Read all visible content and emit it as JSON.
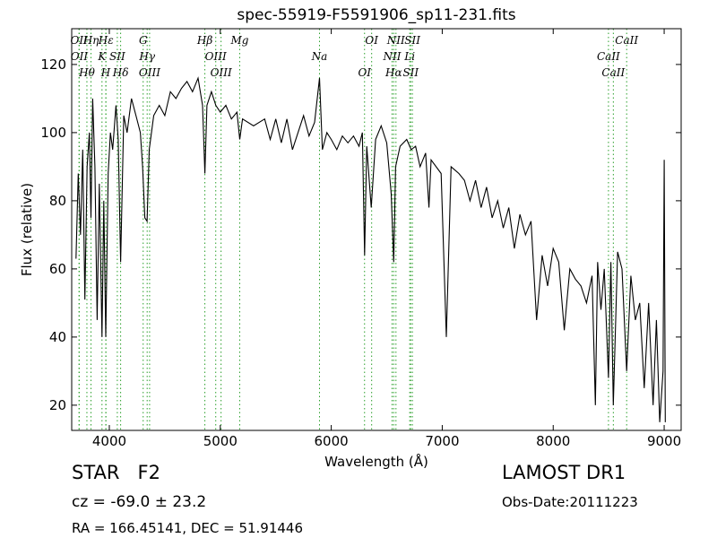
{
  "chart_data": {
    "type": "line",
    "title": "spec-55919-F5591906_sp11-231.fits",
    "x_label": "Wavelength (Å)",
    "y_label": "Flux (relative)",
    "xlim": [
      3661,
      9153
    ],
    "ylim": [
      12.6,
      130.5
    ],
    "xticks": [
      4000,
      5000,
      6000,
      7000,
      8000,
      9000
    ],
    "yticks": [
      20,
      40,
      60,
      80,
      100,
      120
    ],
    "x": [
      3700,
      3720,
      3740,
      3760,
      3780,
      3800,
      3820,
      3835,
      3850,
      3870,
      3890,
      3910,
      3934,
      3950,
      3968,
      3990,
      4010,
      4030,
      4060,
      4080,
      4102,
      4130,
      4160,
      4200,
      4240,
      4280,
      4300,
      4320,
      4340,
      4360,
      4400,
      4450,
      4500,
      4550,
      4600,
      4650,
      4700,
      4750,
      4800,
      4840,
      4861,
      4880,
      4920,
      4960,
      5000,
      5050,
      5100,
      5150,
      5175,
      5200,
      5300,
      5400,
      5450,
      5500,
      5550,
      5600,
      5650,
      5700,
      5750,
      5800,
      5850,
      5894,
      5920,
      5960,
      6000,
      6050,
      6100,
      6150,
      6200,
      6250,
      6280,
      6300,
      6320,
      6360,
      6400,
      6450,
      6500,
      6540,
      6563,
      6580,
      6620,
      6680,
      6720,
      6760,
      6800,
      6850,
      6880,
      6900,
      6990,
      7037,
      7080,
      7150,
      7200,
      7250,
      7300,
      7350,
      7400,
      7450,
      7500,
      7550,
      7600,
      7650,
      7700,
      7750,
      7800,
      7850,
      7900,
      7950,
      8000,
      8050,
      8100,
      8150,
      8200,
      8250,
      8300,
      8350,
      8380,
      8400,
      8430,
      8460,
      8498,
      8520,
      8542,
      8580,
      8620,
      8662,
      8700,
      8740,
      8780,
      8820,
      8860,
      8900,
      8930,
      8960,
      8990,
      9000,
      9010
    ],
    "series": [
      {
        "name": "flux",
        "color": "#000000",
        "values": [
          63,
          88,
          70,
          95,
          51,
          90,
          100,
          75,
          110,
          90,
          45,
          85,
          40,
          80,
          40,
          88,
          100,
          95,
          108,
          98,
          62,
          105,
          100,
          110,
          105,
          100,
          90,
          75,
          74,
          95,
          105,
          108,
          105,
          112,
          110,
          113,
          115,
          112,
          116,
          108,
          88,
          108,
          112,
          108,
          106,
          108,
          104,
          106,
          98,
          104,
          102,
          104,
          98,
          104,
          97,
          104,
          95,
          100,
          105,
          99,
          103,
          116,
          95,
          100,
          98,
          95,
          99,
          97,
          99,
          96,
          100,
          64,
          96,
          78,
          98,
          102,
          97,
          82,
          62,
          90,
          96,
          98,
          95,
          96,
          90,
          94,
          78,
          92,
          88,
          40,
          90,
          88,
          86,
          80,
          86,
          78,
          84,
          75,
          80,
          72,
          78,
          66,
          76,
          70,
          74,
          45,
          64,
          55,
          66,
          62,
          42,
          60,
          57,
          55,
          50,
          58,
          20,
          62,
          48,
          60,
          28,
          62,
          20,
          65,
          60,
          30,
          58,
          45,
          50,
          25,
          50,
          20,
          45,
          15,
          30,
          92,
          15
        ]
      }
    ],
    "line_color": "#2ca02c",
    "lines": [
      3727,
      3729,
      3798,
      3835,
      3934,
      3968,
      3970,
      4072,
      4102,
      4305,
      4341,
      4363,
      4861,
      4959,
      5007,
      5175,
      5894,
      6300,
      6364,
      6548,
      6563,
      6583,
      6707,
      6716,
      6731,
      8498,
      8542,
      8662
    ],
    "line_labels": [
      "OII",
      "OII",
      "Hθ",
      "Hη",
      "K",
      "H",
      "Hε",
      "SII",
      "Hδ",
      "G",
      "Hγ",
      "OIII",
      "Hβ",
      "OIII",
      "OIII",
      "Mg",
      "Na",
      "OI",
      "OI",
      "NII",
      "Hα",
      "NII",
      "Li",
      "SII",
      "SII",
      "CaII",
      "CaII",
      "CaII"
    ],
    "class_label": "STAR   F2",
    "redshift_label": "cz = -69.0 ± 23.2",
    "coords_label": "RA = 166.45141, DEC = 51.91446",
    "survey_label": "LAMOST DR1",
    "date_label": "Obs-Date:20111223"
  }
}
